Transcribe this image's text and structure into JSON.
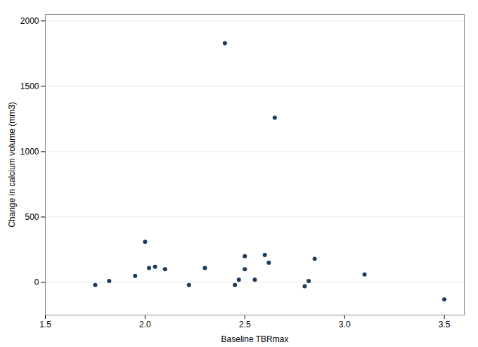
{
  "chart_data": {
    "type": "scatter",
    "x": [
      1.75,
      1.82,
      1.95,
      2.0,
      2.02,
      2.05,
      2.1,
      2.22,
      2.3,
      2.4,
      2.45,
      2.47,
      2.5,
      2.5,
      2.55,
      2.6,
      2.62,
      2.65,
      2.8,
      2.82,
      2.85,
      3.1,
      3.5
    ],
    "values": [
      -20,
      10,
      50,
      310,
      110,
      120,
      100,
      -20,
      110,
      1830,
      -20,
      20,
      100,
      200,
      20,
      210,
      150,
      1260,
      -30,
      10,
      180,
      60,
      -130
    ],
    "color": "#1b3a5c",
    "xlabel": "Baseline TBRmax",
    "ylabel": "Change in calcium volume (mm3)",
    "xlim": [
      1.5,
      3.6
    ],
    "ylim": [
      -250,
      2050
    ],
    "xticks": [
      1.5,
      {
        "value": 2.0,
        "label": "2.0"
      },
      2.5,
      {
        "value": 3.0,
        "label": "3.0"
      },
      3.5
    ],
    "yticks": [
      0,
      500,
      1000,
      1500,
      2000
    ],
    "grid": true
  }
}
